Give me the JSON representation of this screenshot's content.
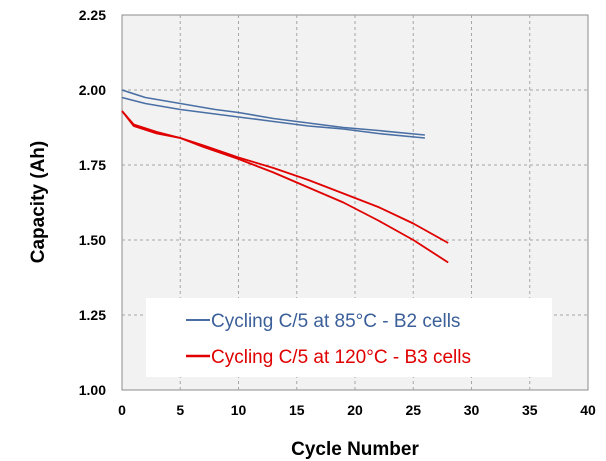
{
  "chart_data": {
    "type": "line",
    "title": "",
    "xlabel": "Cycle Number",
    "ylabel": "Capacity (Ah)",
    "xlim": [
      0,
      40
    ],
    "ylim": [
      1.0,
      2.25
    ],
    "xticks": [
      "0",
      "5",
      "10",
      "15",
      "20",
      "25",
      "30",
      "35",
      "40"
    ],
    "yticks": [
      "1.00",
      "1.25",
      "1.50",
      "1.75",
      "2.00",
      "2.25"
    ],
    "grid": true,
    "legend_position": "bottom-left",
    "series": [
      {
        "name": "Cycling C/5 at 85°C - B2 cells",
        "color": "#4a6fa5",
        "lines": [
          {
            "x": [
              0,
              2,
              5,
              8,
              10,
              13,
              16,
              19,
              22,
              26
            ],
            "y": [
              2.0,
              1.975,
              1.955,
              1.935,
              1.925,
              1.905,
              1.89,
              1.875,
              1.865,
              1.85
            ]
          },
          {
            "x": [
              0,
              2,
              5,
              8,
              10,
              13,
              16,
              19,
              22,
              26
            ],
            "y": [
              1.975,
              1.955,
              1.935,
              1.92,
              1.91,
              1.895,
              1.88,
              1.87,
              1.855,
              1.84
            ]
          }
        ]
      },
      {
        "name": "Cycling C/5 at 120°C - B3 cells",
        "color": "#e00000",
        "lines": [
          {
            "x": [
              0,
              1,
              3,
              5,
              7,
              10,
              13,
              16,
              19,
              22,
              25,
              28
            ],
            "y": [
              1.93,
              1.88,
              1.855,
              1.84,
              1.815,
              1.775,
              1.74,
              1.7,
              1.655,
              1.61,
              1.555,
              1.49
            ]
          },
          {
            "x": [
              0,
              1,
              3,
              5,
              7,
              10,
              13,
              16,
              19,
              22,
              25,
              28
            ],
            "y": [
              1.93,
              1.885,
              1.86,
              1.84,
              1.81,
              1.77,
              1.725,
              1.675,
              1.625,
              1.565,
              1.5,
              1.425
            ]
          }
        ]
      }
    ]
  }
}
